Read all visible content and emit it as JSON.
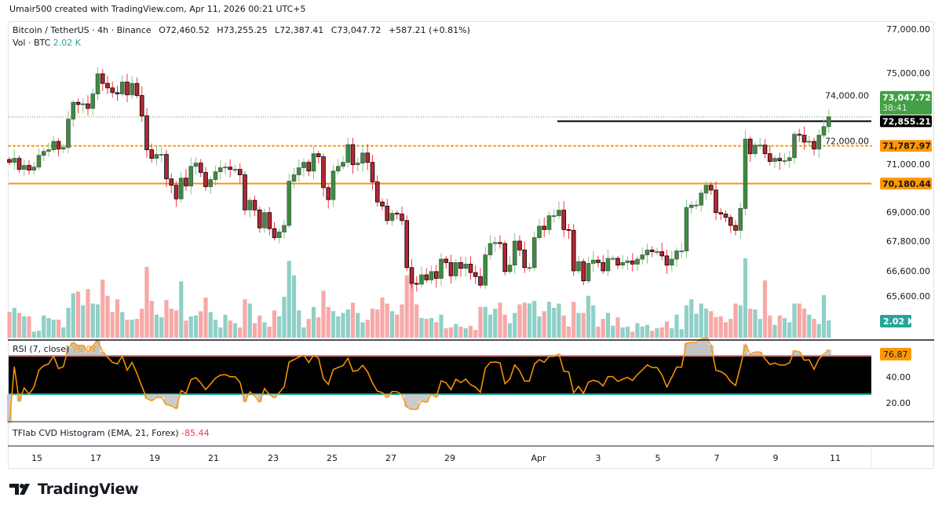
{
  "credit": "Umair500 created with TradingView.com, Apr 11, 2026 00:21 UTC+5",
  "legend": {
    "symbol": "Bitcoin / TetherUS · 4h · Binance",
    "open": "O72,460.52",
    "high": "H73,255.25",
    "low": "L72,387.41",
    "close": "C73,047.72",
    "change": "+587.21 (+0.81%)",
    "volume_label": "Vol · BTC",
    "volume_value": "2.02 K"
  },
  "price_axis": {
    "ticks": [
      "77,000.00",
      "75,000.00",
      "74,000.00",
      "72,000.00",
      "71,000.00",
      "69,000.00",
      "67,800.00",
      "66,600.00",
      "65,600.00"
    ],
    "tick_values": [
      77000,
      75000,
      74000,
      72000,
      71000,
      69000,
      67800,
      66600,
      65600
    ],
    "scale": "log",
    "current_price": "73,047.72",
    "countdown": "38:41",
    "volume_badge": "2.02 K"
  },
  "levels": [
    {
      "value": 72855.21,
      "label": "72,855.21",
      "style": "solid",
      "color": "#000000"
    },
    {
      "value": 71787.97,
      "label": "71,787.97",
      "style": "dotted",
      "color": "#ff9800"
    },
    {
      "value": 70180.44,
      "label": "70,180.44",
      "style": "solid",
      "color": "#ff9800"
    }
  ],
  "rsi": {
    "title": "RSI (7, close)",
    "value": "76.87",
    "ticks": [
      "40.00",
      "20.00"
    ],
    "upper_band": 70,
    "lower_band": 30
  },
  "cvd": {
    "title": "TFlab CVD Histogram (EMA, 21, Forex)",
    "value": "-85.44"
  },
  "time_axis": {
    "labels": [
      "15",
      "17",
      "19",
      "21",
      "23",
      "25",
      "27",
      "29",
      "Apr",
      "3",
      "5",
      "7",
      "9",
      "11"
    ]
  },
  "logo": {
    "text": "TradingView"
  },
  "colors": {
    "up": "#388e3c",
    "down": "#b22833",
    "vol_up": "#8fd0c7",
    "vol_down": "#f7a9a7",
    "rsi_line": "#ff9800",
    "accent_green": "#43a047",
    "orange": "#ff9800",
    "teal": "#26a69a"
  },
  "chart_data": {
    "type": "candlestick",
    "interval": "4h",
    "first_open": 71200,
    "closes": [
      71080,
      71250,
      70780,
      70950,
      70750,
      70880,
      71380,
      71550,
      71620,
      71980,
      71650,
      71720,
      72950,
      73690,
      73590,
      73620,
      73420,
      74060,
      74960,
      74530,
      74330,
      74120,
      74060,
      74590,
      74020,
      74530,
      73990,
      73090,
      71620,
      71250,
      71420,
      71420,
      70380,
      70110,
      69540,
      70410,
      70080,
      70910,
      71050,
      70650,
      70050,
      70350,
      70680,
      70850,
      70880,
      70780,
      70780,
      70550,
      69080,
      69480,
      69080,
      68340,
      68970,
      68310,
      67940,
      68170,
      68440,
      70280,
      70550,
      70850,
      71080,
      70710,
      71450,
      71320,
      70010,
      69510,
      70710,
      70910,
      71080,
      71840,
      70980,
      71050,
      71480,
      71080,
      70250,
      69410,
      69240,
      68640,
      68940,
      68910,
      68640,
      66730,
      66100,
      66070,
      66440,
      66240,
      66570,
      66300,
      67070,
      66930,
      66400,
      66930,
      66700,
      66870,
      66530,
      66370,
      66030,
      67240,
      67700,
      67740,
      67700,
      66570,
      66830,
      67800,
      67440,
      66730,
      66730,
      67940,
      68410,
      68270,
      68840,
      68840,
      69070,
      68270,
      68240,
      66600,
      66970,
      66200,
      66900,
      67030,
      66930,
      66600,
      67100,
      67100,
      66830,
      66930,
      67000,
      66870,
      67070,
      67240,
      67440,
      67370,
      67370,
      67200,
      66830,
      67070,
      67400,
      67400,
      69180,
      69280,
      69280,
      69780,
      70110,
      69910,
      68970,
      68910,
      68770,
      68440,
      68240,
      69140,
      72080,
      71450,
      71820,
      71820,
      71450,
      71120,
      71250,
      71150,
      71150,
      71280,
      72290,
      72250,
      71950,
      71980,
      71650,
      72250,
      72620,
      73047.72
    ],
    "volume_k": [
      3.0,
      3.5,
      2.9,
      2.5,
      2.5,
      0.7,
      0.8,
      2.6,
      2.3,
      2.1,
      2.1,
      1.2,
      3.5,
      5.2,
      5.4,
      3.8,
      5.7,
      4.0,
      3.9,
      6.8,
      4.9,
      3.0,
      4.5,
      3.0,
      2.1,
      2.1,
      2.2,
      3.4,
      8.3,
      4.3,
      2.7,
      2.4,
      4.4,
      3.4,
      3.2,
      6.6,
      2.0,
      2.5,
      2.6,
      3.1,
      4.7,
      3.0,
      2.1,
      1.2,
      2.7,
      2.0,
      1.7,
      1.2,
      4.5,
      4.0,
      1.7,
      2.6,
      1.8,
      1.3,
      3.2,
      2.5,
      4.8,
      9.0,
      7.3,
      3.2,
      1.2,
      2.2,
      3.6,
      2.4,
      5.5,
      3.6,
      3.1,
      2.5,
      2.9,
      3.3,
      4.1,
      2.9,
      1.8,
      2.1,
      3.4,
      3.3,
      4.7,
      4.0,
      3.1,
      2.7,
      3.9,
      7.3,
      6.5,
      3.9,
      2.3,
      2.2,
      2.3,
      1.8,
      2.7,
      1.1,
      1.2,
      1.6,
      1.3,
      1.1,
      1.4,
      0.9,
      3.6,
      3.6,
      2.7,
      3.4,
      4.1,
      2.7,
      1.7,
      2.9,
      3.9,
      4.1,
      4.0,
      4.3,
      2.5,
      3.1,
      4.2,
      3.5,
      4.0,
      2.6,
      1.3,
      4.2,
      2.9,
      2.9,
      4.9,
      3.8,
      1.3,
      2.2,
      2.9,
      1.4,
      2.4,
      1.2,
      1.3,
      0.7,
      1.7,
      1.3,
      1.5,
      0.8,
      1.1,
      1.2,
      1.9,
      1.1,
      2.7,
      1.0,
      3.8,
      4.5,
      2.8,
      4.0,
      3.4,
      3.1,
      2.4,
      2.5,
      1.8,
      2.2,
      4.0,
      3.8,
      9.3,
      3.4,
      3.3,
      2.2,
      6.7,
      2.6,
      1.5,
      2.6,
      2.3,
      1.8,
      4.0,
      4.0,
      3.4,
      2.7,
      2.2,
      1.6,
      5.0,
      2.02
    ],
    "ylim": [
      65000,
      77300
    ],
    "grid": false
  }
}
